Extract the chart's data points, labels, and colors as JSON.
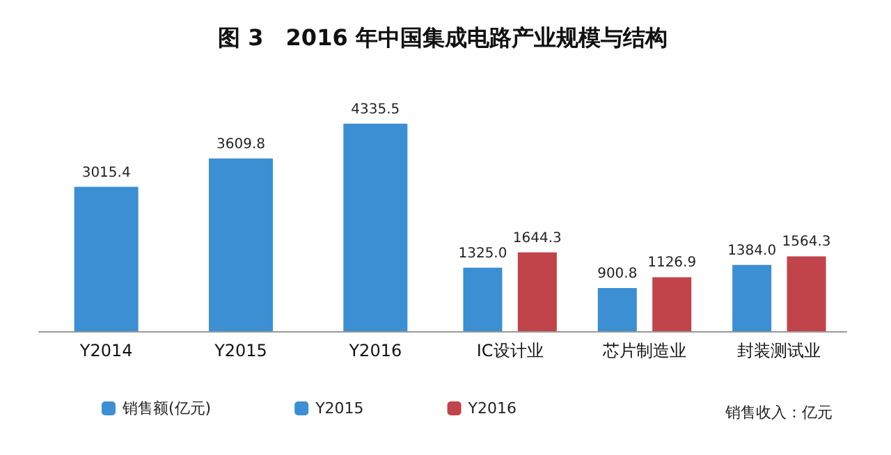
{
  "chart_data": {
    "type": "bar",
    "title": "图 3　2016 年中国集成电路产业规模与结构",
    "categories": [
      "Y2014",
      "Y2015",
      "Y2016",
      "IC设计业",
      "芯片制造业",
      "封装测试业"
    ],
    "series": [
      {
        "name": "销售额(亿元)",
        "color": "#3b8fd2",
        "values": [
          3015.4,
          3609.8,
          4335.5,
          null,
          null,
          null
        ],
        "value_labels": [
          "3015.4",
          "3609.8",
          "4335.5",
          null,
          null,
          null
        ]
      },
      {
        "name": "Y2015",
        "color": "#3b8fd2",
        "values": [
          null,
          null,
          null,
          1325.0,
          900.8,
          1384.0
        ],
        "value_labels": [
          null,
          null,
          null,
          "1325.0",
          "900.8",
          "1384.0"
        ]
      },
      {
        "name": "Y2016",
        "color": "#c0444a",
        "values": [
          null,
          null,
          null,
          1644.3,
          1126.9,
          1564.3
        ],
        "value_labels": [
          null,
          null,
          null,
          "1644.3",
          "1126.9",
          "1564.3"
        ]
      }
    ],
    "annotations": [
      "销售收入：亿元"
    ],
    "legend": "bottom"
  }
}
